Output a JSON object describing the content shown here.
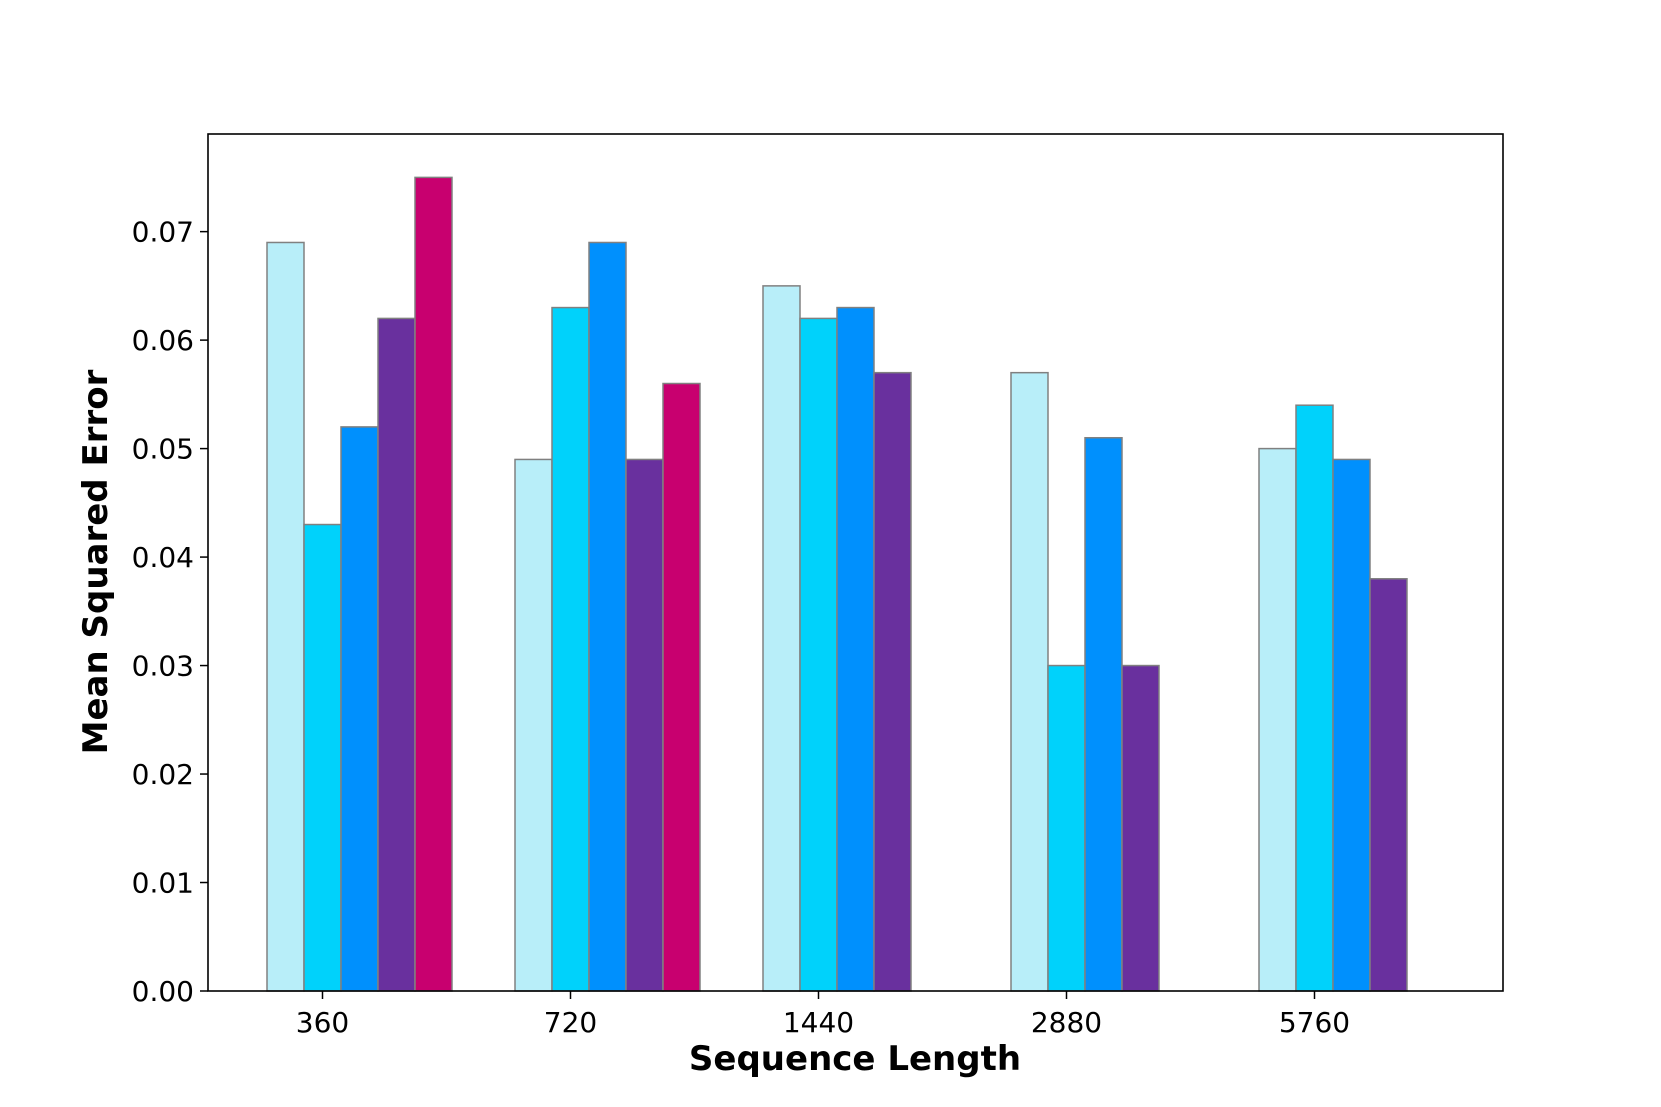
{
  "chart_data": {
    "type": "bar",
    "title": "",
    "xlabel": "Sequence Length",
    "ylabel": "Mean Squared Error",
    "categories": [
      "360",
      "720",
      "1440",
      "2880",
      "5760"
    ],
    "ylim": [
      0,
      0.079
    ],
    "yticks": [
      "0.00",
      "0.01",
      "0.02",
      "0.03",
      "0.04",
      "0.05",
      "0.06",
      "0.07"
    ],
    "grid": false,
    "legend": "none",
    "bar_edge_color": "#808080",
    "series": [
      {
        "color": "#b8eef9",
        "values": [
          0.069,
          0.049,
          0.065,
          0.057,
          0.05
        ]
      },
      {
        "color": "#00d2fb",
        "values": [
          0.043,
          0.063,
          0.062,
          0.03,
          0.054
        ]
      },
      {
        "color": "#0090fd",
        "values": [
          0.052,
          0.069,
          0.063,
          0.051,
          0.049
        ]
      },
      {
        "color": "#69309e",
        "values": [
          0.062,
          0.049,
          0.057,
          0.03,
          0.038
        ]
      },
      {
        "color": "#c8006f",
        "values": [
          0.075,
          0.056,
          null,
          null,
          null
        ]
      }
    ]
  }
}
